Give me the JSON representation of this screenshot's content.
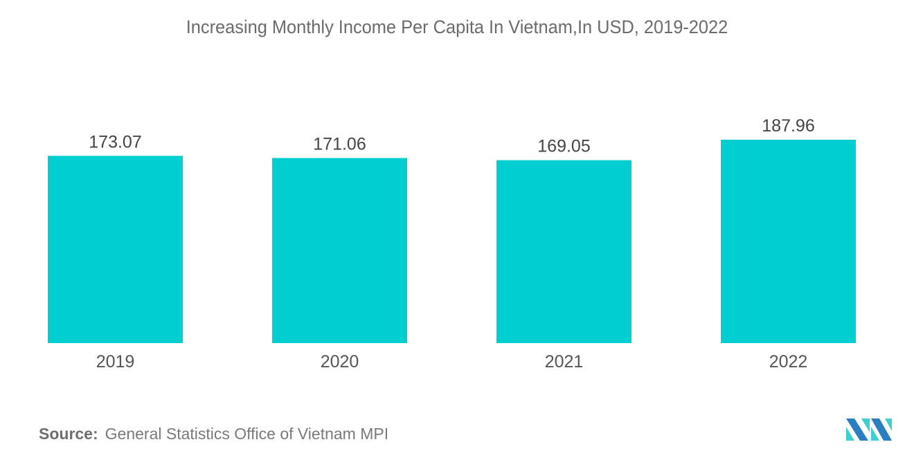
{
  "chart_data": {
    "type": "bar",
    "title": "Increasing Monthly Income Per Capita In Vietnam,In USD, 2019-2022",
    "categories": [
      "2019",
      "2020",
      "2021",
      "2022"
    ],
    "values": [
      173.07,
      171.06,
      169.05,
      187.96
    ],
    "value_labels": [
      "173.07",
      "171.06",
      "169.05",
      "187.96"
    ],
    "xlabel": "",
    "ylabel": "",
    "ylim": [
      0,
      187.96
    ],
    "grid": false,
    "legend": "none",
    "bar_color": "#00ced1"
  },
  "source": {
    "label": "Source:",
    "text": "General Statistics Office of Vietnam MPI"
  },
  "logo": {
    "icon": "mordor-logo-icon",
    "colors": [
      "#2a7fc0",
      "#3ecfd0"
    ]
  }
}
